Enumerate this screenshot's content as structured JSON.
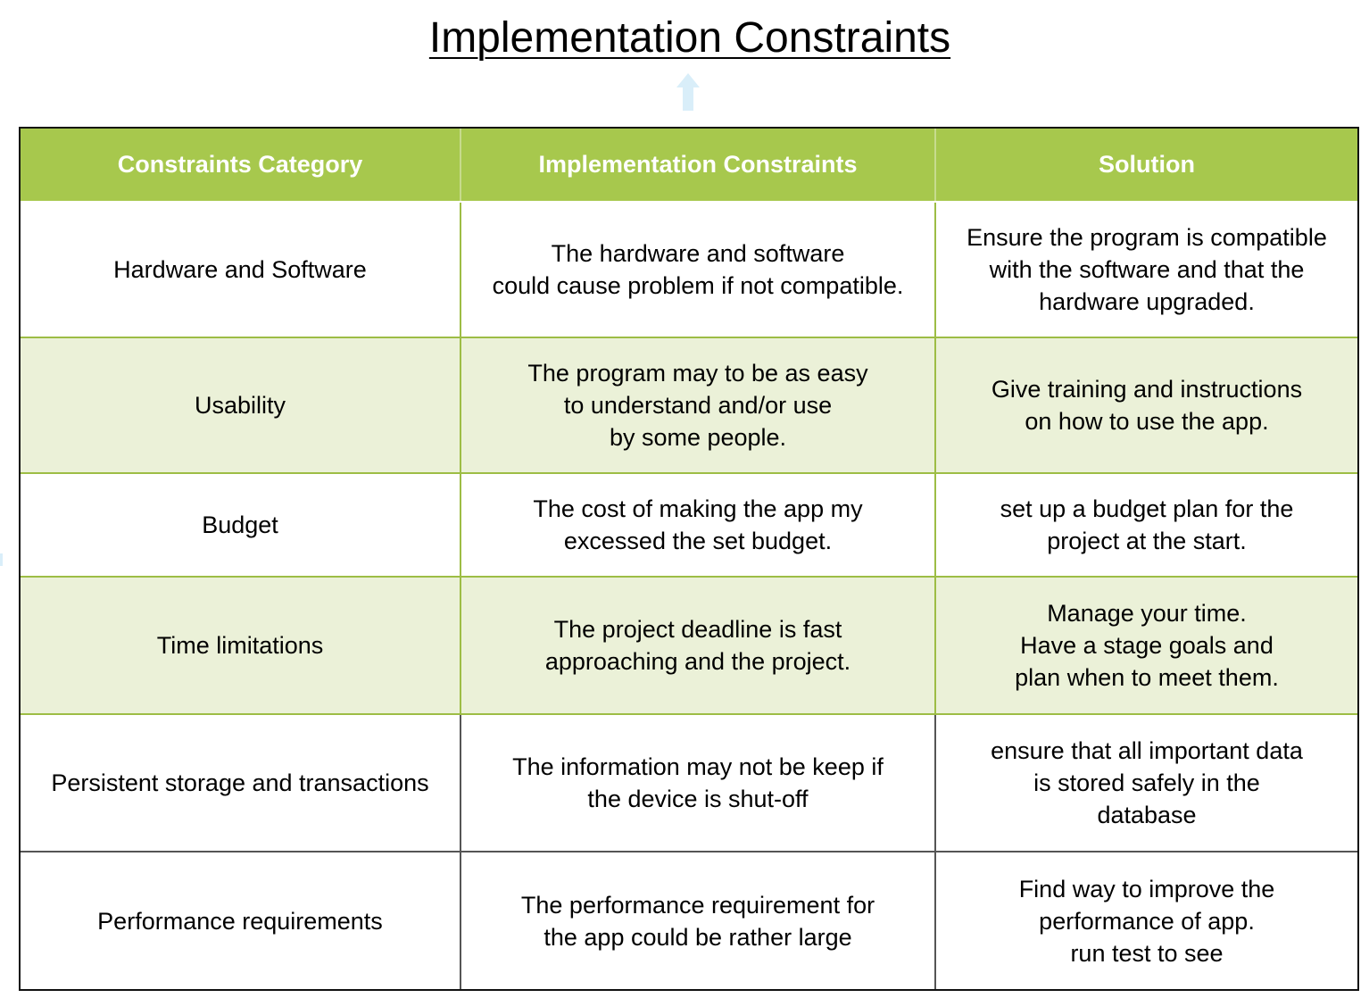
{
  "title": "Implementation Constraints",
  "colors": {
    "header_background": "#a7c84d",
    "alternate_row_background": "#ebf1d8",
    "arrow": "#d9eef9"
  },
  "icons": {
    "arrow": "up-arrow-icon"
  },
  "table": {
    "headers": [
      "Constraints Category",
      "Implementation Constraints",
      "Solution"
    ],
    "rows": [
      {
        "category": [
          "Hardware and Software"
        ],
        "constraint": [
          "The hardware and software",
          "could cause problem if not compatible."
        ],
        "solution": [
          "Ensure the program is compatible",
          "with the software and that the",
          "hardware upgraded."
        ]
      },
      {
        "category": [
          "Usability"
        ],
        "constraint": [
          "The program may to be as easy",
          "to understand and/or use",
          "by some people."
        ],
        "solution": [
          "Give training and instructions",
          "on how to use the app."
        ]
      },
      {
        "category": [
          "Budget"
        ],
        "constraint": [
          "The cost of making the app my",
          "excessed the set budget."
        ],
        "solution": [
          "set up a budget plan for the",
          "project at the start."
        ]
      },
      {
        "category": [
          "Time limitations"
        ],
        "constraint": [
          "The project deadline is fast",
          "approaching and the project."
        ],
        "solution": [
          "Manage your time.",
          "Have a stage goals and",
          "plan when to meet them."
        ]
      },
      {
        "category": [
          "Persistent storage and transactions"
        ],
        "constraint": [
          "The information may not be keep if",
          "the device is shut-off"
        ],
        "solution": [
          "ensure that all important data",
          "is stored safely in the",
          "database"
        ]
      },
      {
        "category": [
          "Performance requirements"
        ],
        "constraint": [
          "The performance requirement for",
          "the app could be rather large"
        ],
        "solution": [
          "Find way to improve the",
          "performance of app.",
          "run test to see"
        ]
      }
    ]
  }
}
